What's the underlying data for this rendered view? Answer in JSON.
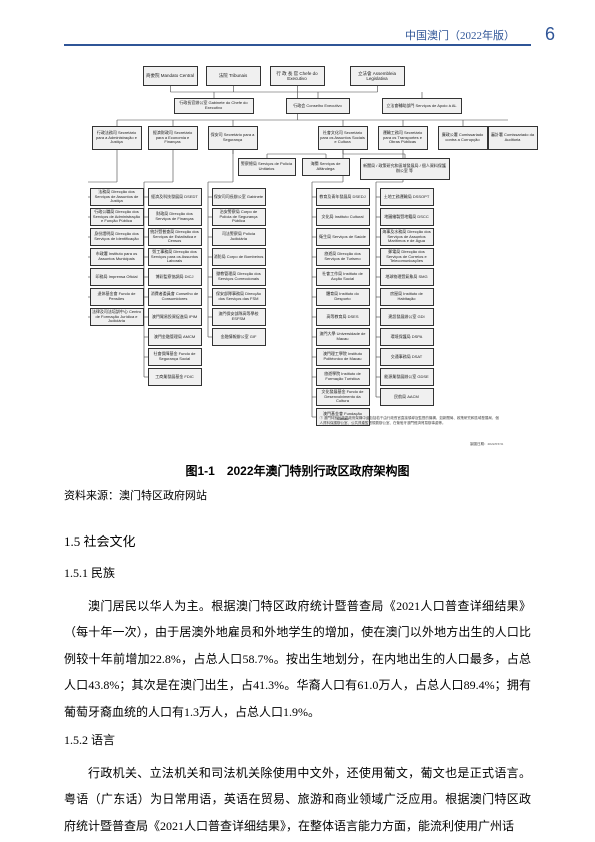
{
  "header": {
    "title": "中国澳门（2022年版）",
    "page_number": "6"
  },
  "colors": {
    "accent": "#2f5597",
    "box_bg": "#f0f0f0",
    "box_border": "#333333",
    "line": "#444444"
  },
  "org": {
    "tier1": [
      {
        "zh": "商委院",
        "pt": "Mandato Central"
      },
      {
        "zh": "法院",
        "pt": "Tribunais"
      },
      {
        "zh": "行 政 長 官",
        "pt": "Chefe do Executivo"
      },
      {
        "zh": "立法會",
        "pt": "Assembleia Legislativa"
      }
    ],
    "tier2": [
      {
        "zh": "行政長官辦公室",
        "pt": "Gabinete do Chefe do Executivo"
      },
      {
        "zh": "行政会",
        "pt": "Conselho Executivo"
      },
      {
        "zh": "立法會輔助部門",
        "pt": "Serviços de Apoio à AL"
      }
    ],
    "tier3": [
      {
        "zh": "行政法務司",
        "pt": "Secretário para a Administração e Justiça"
      },
      {
        "zh": "經濟財政司",
        "pt": "Secretário para a Economia e Finanças"
      },
      {
        "zh": "保安司",
        "pt": "Secretário para a Segurança"
      },
      {
        "zh": "社會文化司",
        "pt": "Secretário para os Assuntos Sociais e Cultura"
      },
      {
        "zh": "運輸工務司",
        "pt": "Secretário para os Transportes e Obras Públicas"
      },
      {
        "zh": "廉政公署",
        "pt": "Comissariado contra a Corrupção"
      },
      {
        "zh": "審計署",
        "pt": "Comissariado da Auditoria"
      }
    ],
    "tier4_center": [
      {
        "zh": "警察總局",
        "pt": "Serviços de Polícia Unitários"
      },
      {
        "zh": "海關",
        "pt": "Serviços de Alfândega"
      }
    ],
    "extra_right": {
      "zh": "新聞局 / 政策研究和區域發展局 / 個人資料保護辦公室 等",
      "pt": "GCS / DSEPDR / GPDP etc."
    },
    "columns": [
      [
        "法務局 Direcção dos Serviços de Assuntos de Justiça",
        "行政公職局 Direcção dos Serviços de Administração e Função Pública",
        "身份證明局 Direcção dos Serviços de Identificação",
        "市政署 Instituto para os Assuntos Municipais",
        "印務局 Imprensa Oficial",
        "退休基金會 Fundo de Pensões",
        "法律及司法培訓中心 Centro de Formação Jurídica e Judiciária"
      ],
      [
        "經濟及科技發展局 DSEDT",
        "財政局 Direcção dos Serviços de Finanças",
        "統計暨普查局 Direcção dos Serviços de Estatística e Censos",
        "勞工事務局 Direcção dos Serviços para os Assuntos Laborais",
        "博彩監察協調局 DICJ",
        "消費者委員會 Conselho de Consumidores",
        "澳門貿易投資促進局 IPIM",
        "澳門金融管理局 AMCM",
        "社會保障基金 Fundo de Segurança Social",
        "工商業發展基金 FDIC"
      ],
      [
        "保安司司長辦公室 Gabinete",
        "治安警察局 Corpo de Polícia de Segurança Pública",
        "司法警察局 Polícia Judiciária",
        "消防局 Corpo de Bombeiros",
        "懲教管理局 Direcção dos Serviços Correccionais",
        "保安部隊事務局 Direcção dos Serviços das FSM",
        "澳門保安部隊高等學校 ESFSM",
        "金融情報辦公室 GIF"
      ],
      [
        "教育及青年發展局 DSEDJ",
        "文化局 Instituto Cultural",
        "衛生局 Serviços de Saúde",
        "旅遊局 Direcção dos Serviços de Turismo",
        "社會工作局 Instituto de Acção Social",
        "體育局 Instituto do Desporto",
        "高等教育局 DSES",
        "澳門大學 Universidade de Macau",
        "澳門理工學院 Instituto Politécnico de Macau",
        "旅遊學院 Instituto de Formação Turística",
        "文化發展基金 Fundo de Desenvolvimento da Cultura",
        "澳門基金會 Fundação Macau"
      ],
      [
        "土地工務運輸局 DSSOPT",
        "地圖繪製暨地籍局 DSCC",
        "海事及水務局 Direcção dos Serviços de Assuntos Marítimos e de Água",
        "郵電局 Direcção dos Serviços de Correios e Telecomunicações",
        "地球物理暨氣象局 SMG",
        "房屋局 Instituto de Habitação",
        "建設發展辦公室 GDI",
        "環境保護局 DSPA",
        "交通事務局 DSAT",
        "能源業發展辦公室 GDSE",
        "民航局 AACM"
      ]
    ],
    "footnote_mark": "①",
    "footnote_text": "① 澳門特別行政區政府架構中還包括若干由行政長官直接領導及監督的機構，如新聞局、政策研究和區域發展局、個人資料保護辦公室、公共資產監督規劃辦公室、在葡萄牙澳門經濟貿易辦事處等。",
    "footnote_date": "製圖日期：2022/03/31"
  },
  "figure": {
    "caption": "图1-1　2022年澳门特别行政区政府架构图",
    "source_label": "资料来源：",
    "source_value": "澳门特区政府网站"
  },
  "section": {
    "num": "1.5",
    "title": "社会文化"
  },
  "sub1": {
    "num": "1.5.1",
    "title": "民族"
  },
  "para1": "澳门居民以华人为主。根据澳门特区政府统计暨普查局《2021人口普查详细结果》（每十年一次），由于居澳外地雇员和外地学生的增加，使在澳门以外地方出生的人口比例较十年前增加22.8%，占总人口58.7%。按出生地划分，在内地出生的人口最多，占总人口43.8%；其次是在澳门出生，占41.3%。华裔人口有61.0万人，占总人口89.4%；拥有葡萄牙裔血统的人口有1.3万人，占总人口1.9%。",
  "sub2": {
    "num": "1.5.2",
    "title": "语言"
  },
  "para2": "行政机关、立法机关和司法机关除使用中文外，还使用葡文，葡文也是正式语言。粤语（广东话）为日常用语，英语在贸易、旅游和商业领域广泛应用。根据澳门特区政府统计暨普查局《2021人口普查详细结果》，在整体语言能力方面，能流利使用广州话"
}
